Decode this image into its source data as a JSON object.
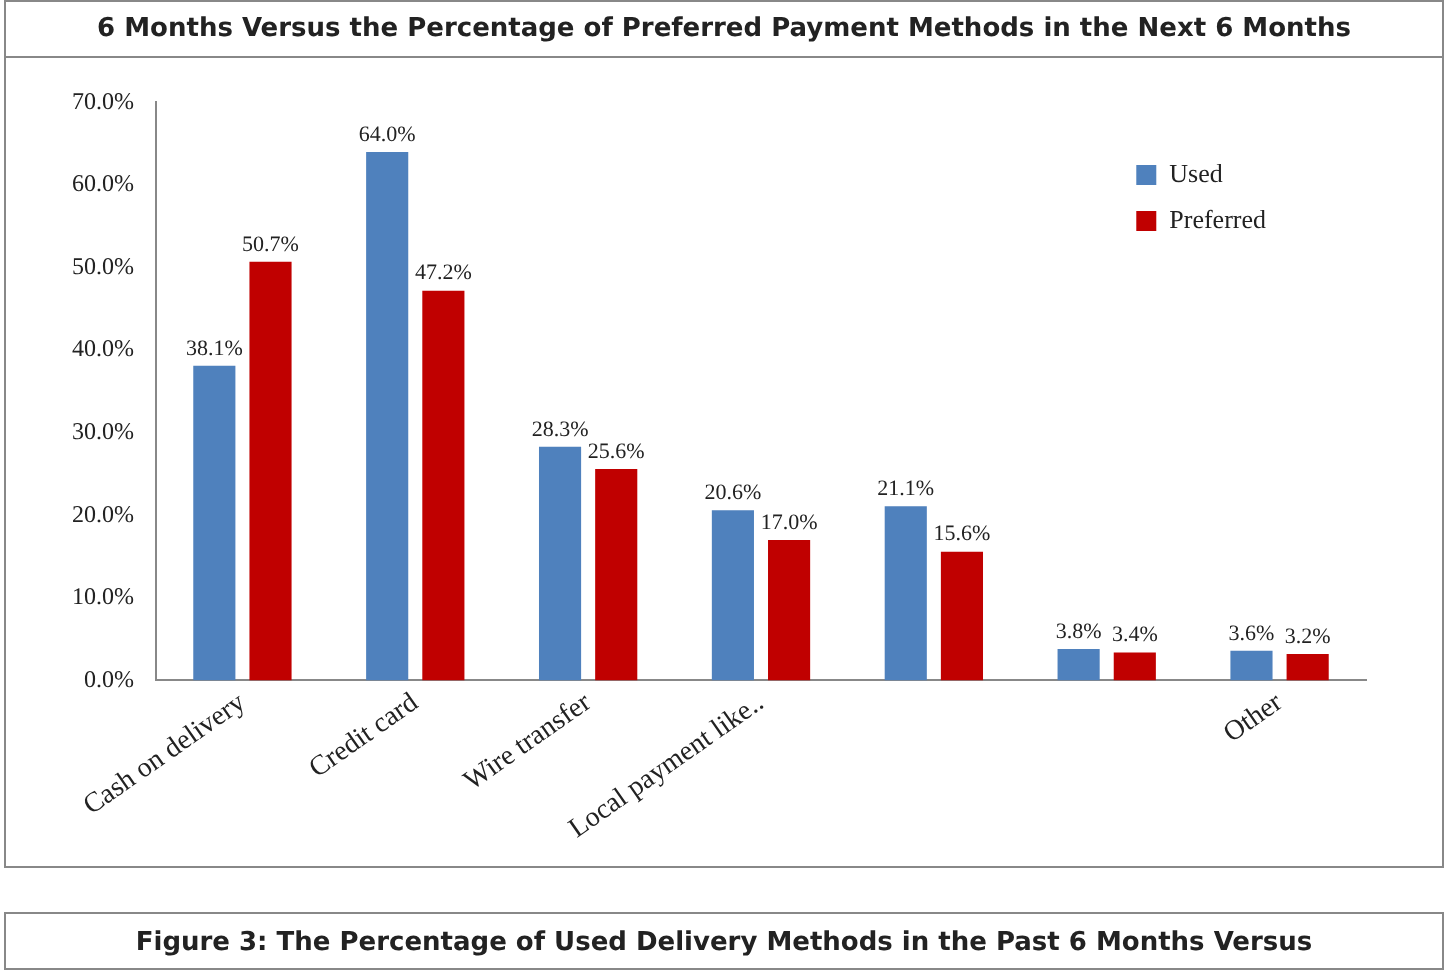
{
  "chart_data": {
    "type": "bar",
    "title": "6 Months Versus the Percentage of Preferred Payment Methods in the Next 6 Months",
    "categories": [
      "Cash on delivery",
      "Credit card",
      "Wire transfer",
      "Local payment like..",
      null,
      null,
      "Other"
    ],
    "series": [
      {
        "name": "Used",
        "color": "#4f81bd",
        "values": [
          38.1,
          64.0,
          28.3,
          20.6,
          21.1,
          3.8,
          3.6
        ],
        "value_labels": [
          "38.1%",
          "64.0%",
          "28.3%",
          "20.6%",
          "21.1%",
          "3.8%",
          "3.6%"
        ]
      },
      {
        "name": "Preferred",
        "color": "#c00000",
        "values": [
          50.7,
          47.2,
          25.6,
          17.0,
          15.6,
          3.4,
          3.2
        ],
        "value_labels": [
          "50.7%",
          "47.2%",
          "25.6%",
          "17.0%",
          "15.6%",
          "3.4%",
          "3.2%"
        ]
      }
    ],
    "ylim": [
      0,
      70
    ],
    "yticks": [
      {
        "value": 0,
        "label": "0.0%"
      },
      {
        "value": 10,
        "label": "10.0%"
      },
      {
        "value": 20,
        "label": "20.0%"
      },
      {
        "value": 30,
        "label": "30.0%"
      },
      {
        "value": 40,
        "label": "40.0%"
      },
      {
        "value": 50,
        "label": "50.0%"
      },
      {
        "value": 60,
        "label": "60.0%"
      },
      {
        "value": 70,
        "label": "70.0%"
      }
    ],
    "grid": false,
    "legend": "top right",
    "annotations": [
      "Figure 3: The Percentage of Used Delivery Methods in the Past 6 Months Versus"
    ]
  }
}
